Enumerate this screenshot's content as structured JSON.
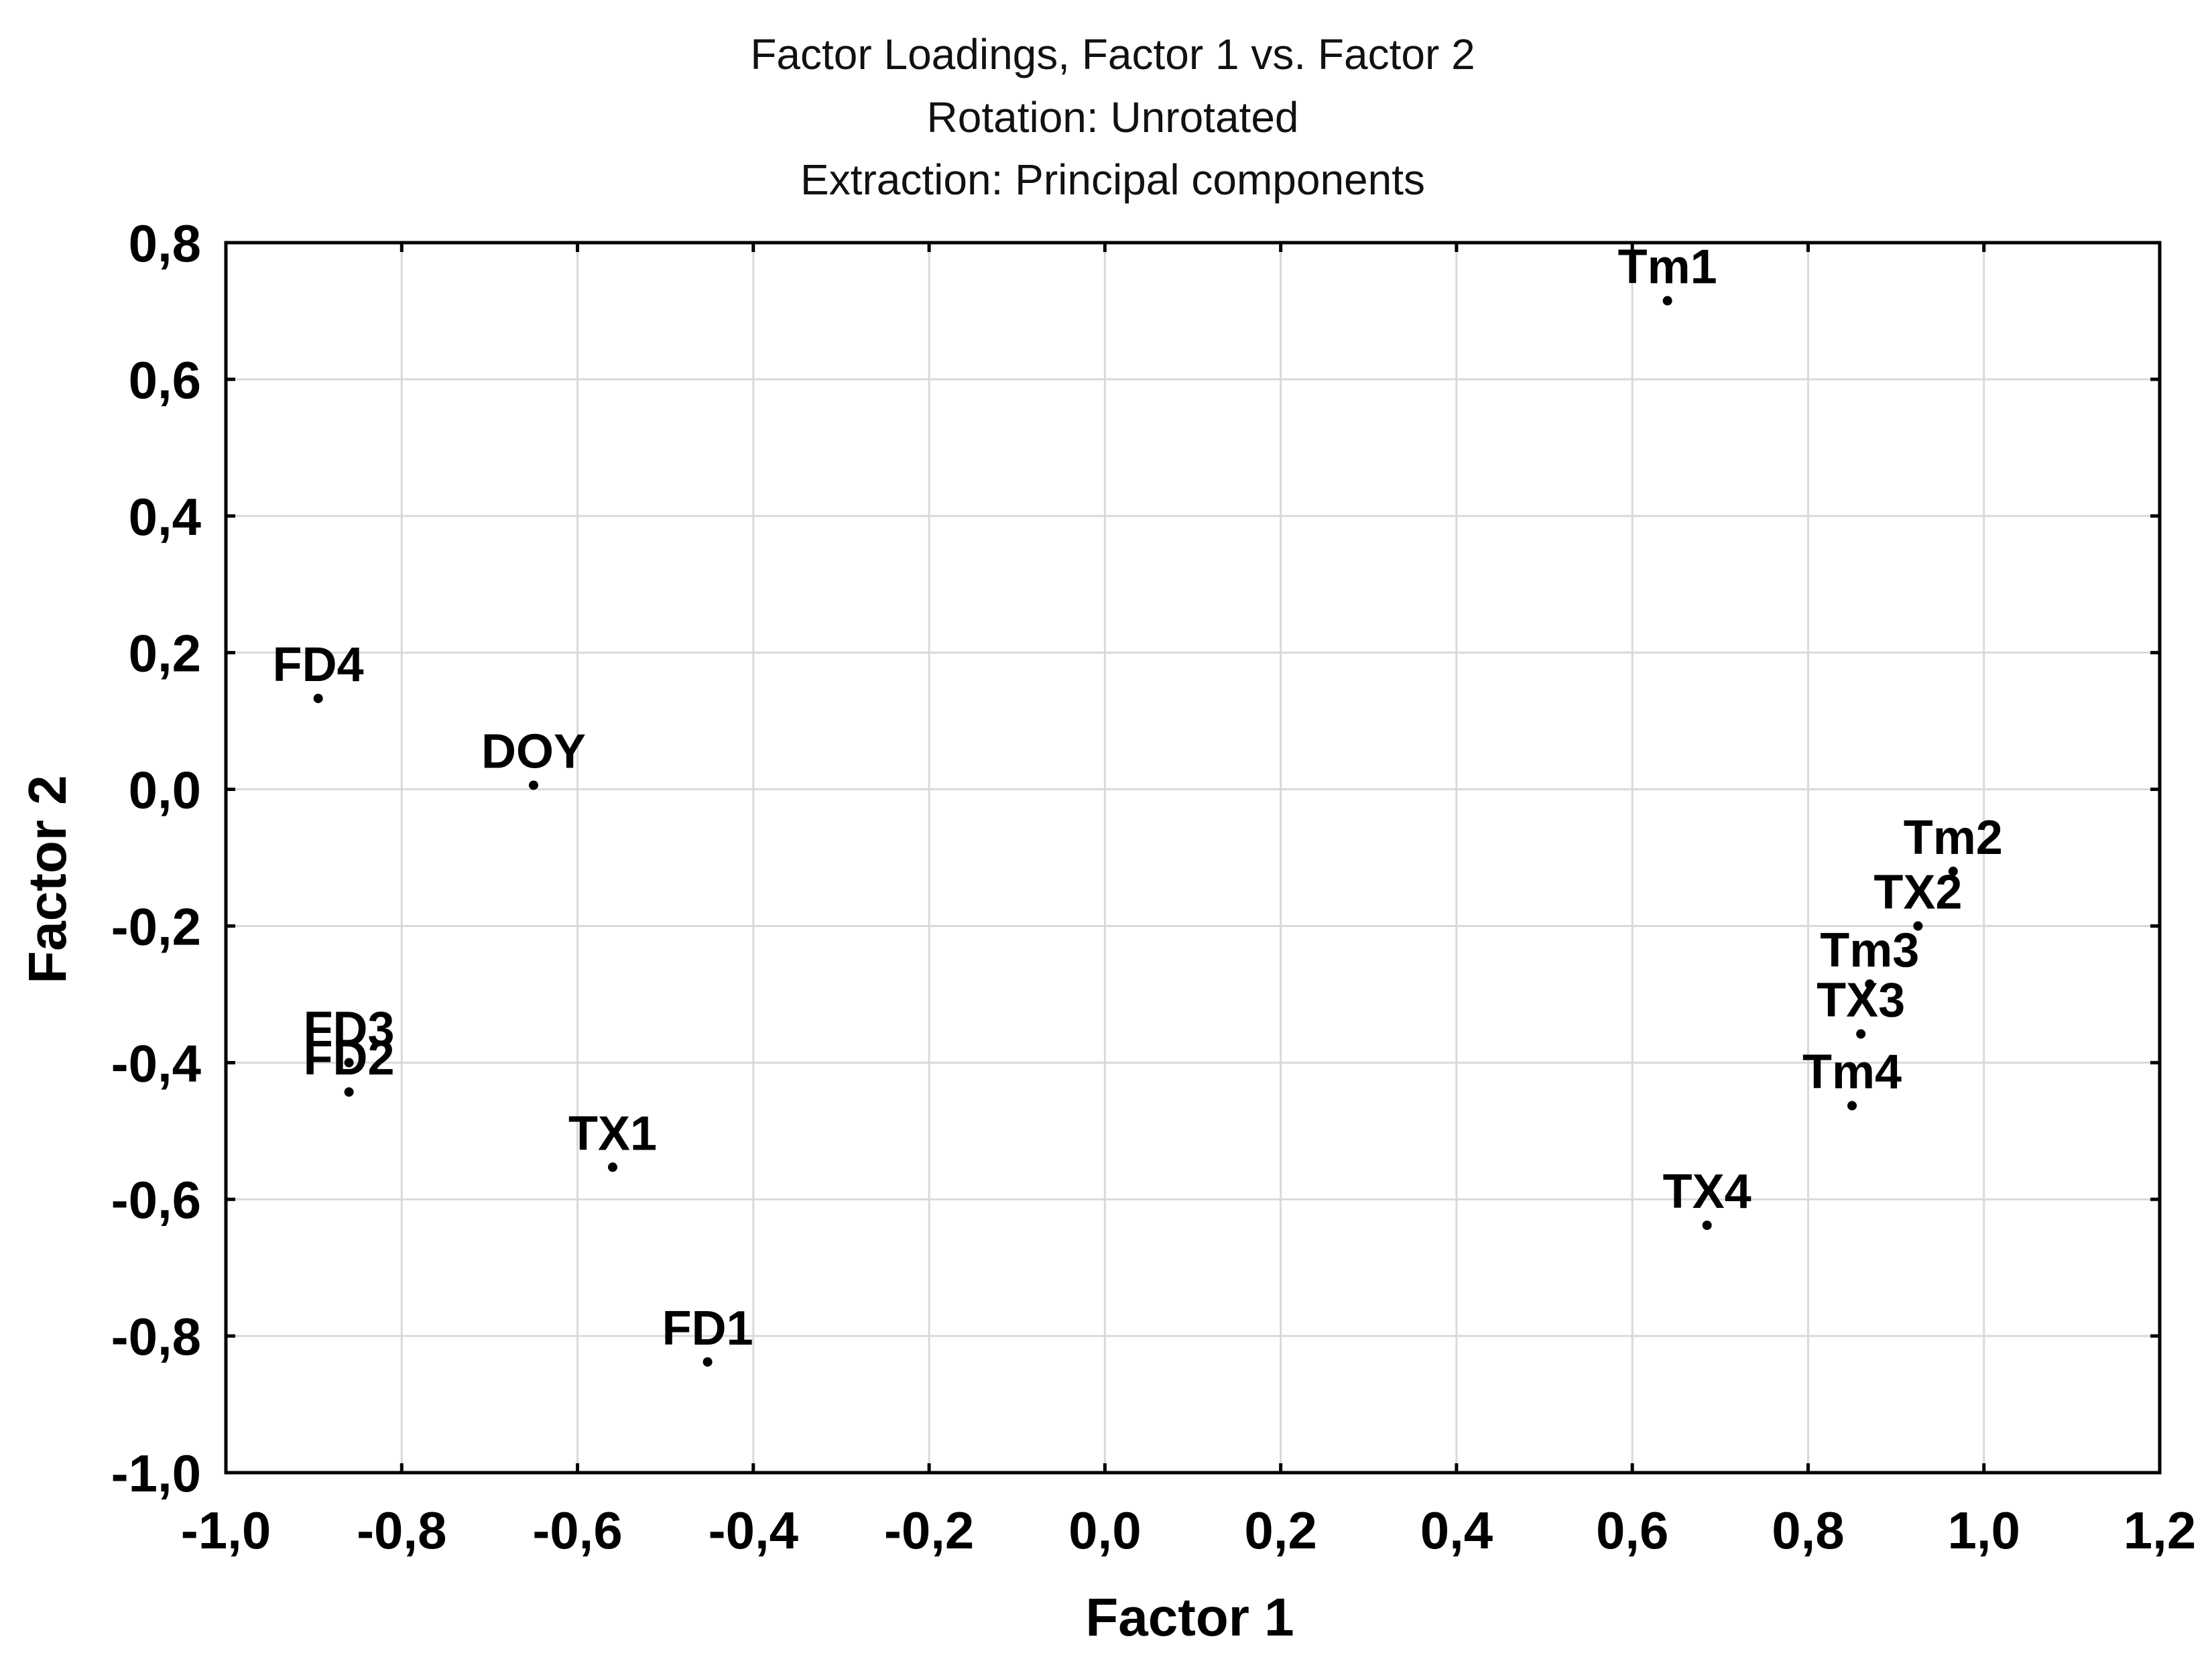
{
  "chart_data": {
    "type": "scatter",
    "title_lines": [
      "Factor Loadings, Factor 1 vs. Factor 2",
      "Rotation: Unrotated",
      "Extraction: Principal components"
    ],
    "xlabel": "Factor 1",
    "ylabel": "Factor 2",
    "xlim": [
      -1.0,
      1.2
    ],
    "ylim": [
      -1.0,
      0.8
    ],
    "x_ticks": [
      -1.0,
      -0.8,
      -0.6,
      -0.4,
      -0.2,
      0.0,
      0.2,
      0.4,
      0.6,
      0.8,
      1.0,
      1.2
    ],
    "x_tick_labels": [
      "-1,0",
      "-0,8",
      "-0,6",
      "-0,4",
      "-0,2",
      "0,0",
      "0,2",
      "0,4",
      "0,6",
      "0,8",
      "1,0",
      "1,2"
    ],
    "y_ticks": [
      0.8,
      0.6,
      0.4,
      0.2,
      0.0,
      -0.2,
      -0.4,
      -0.6,
      -0.8,
      -1.0
    ],
    "y_tick_labels": [
      "0,8",
      "0,6",
      "0,4",
      "0,2",
      "0,0",
      "-0,2",
      "-0,4",
      "-0,6",
      "-0,8",
      "-1,0"
    ],
    "grid": true,
    "points": [
      {
        "label": "Tm1",
        "x": 0.64,
        "y": 0.715
      },
      {
        "label": "FD4",
        "x": -0.895,
        "y": 0.133
      },
      {
        "label": "DOY",
        "x": -0.65,
        "y": 0.006
      },
      {
        "label": "Tm2",
        "x": 0.965,
        "y": -0.12
      },
      {
        "label": "TX2",
        "x": 0.925,
        "y": -0.2
      },
      {
        "label": "Tm3",
        "x": 0.87,
        "y": -0.285
      },
      {
        "label": "TX3",
        "x": 0.86,
        "y": -0.358
      },
      {
        "label": "FD3",
        "x": -0.86,
        "y": -0.4
      },
      {
        "label": "FD2",
        "x": -0.86,
        "y": -0.443
      },
      {
        "label": "Tm4",
        "x": 0.85,
        "y": -0.463
      },
      {
        "label": "TX1",
        "x": -0.56,
        "y": -0.553
      },
      {
        "label": "TX4",
        "x": 0.685,
        "y": -0.638
      },
      {
        "label": "FD1",
        "x": -0.452,
        "y": -0.838
      }
    ]
  }
}
